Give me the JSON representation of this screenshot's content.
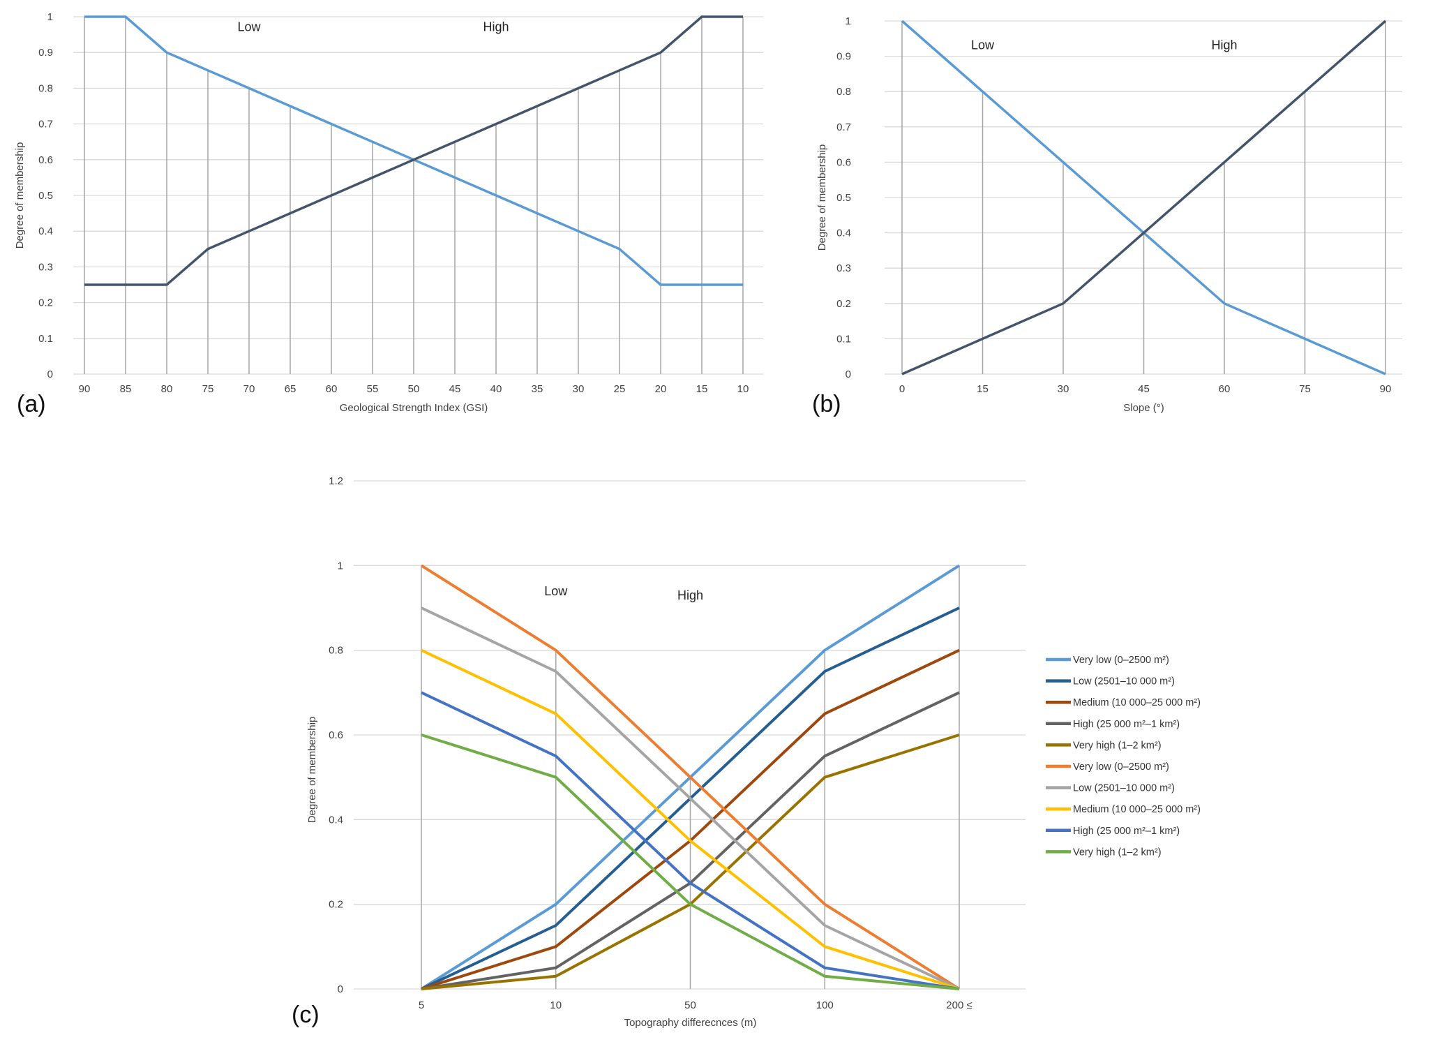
{
  "chart_data": [
    {
      "type": "line",
      "panel_label": "(a)",
      "xlabel": "Geological Strength Index (GSI)",
      "ylabel": "Degree of membership",
      "categories": [
        "90",
        "85",
        "80",
        "75",
        "70",
        "65",
        "60",
        "55",
        "50",
        "45",
        "40",
        "35",
        "30",
        "25",
        "20",
        "15",
        "10"
      ],
      "yticks": [
        "0",
        "0.1",
        "0.2",
        "0.3",
        "0.4",
        "0.5",
        "0.6",
        "0.7",
        "0.8",
        "0.9",
        "1"
      ],
      "ylim": [
        0,
        1
      ],
      "grid": true,
      "annotations": [
        {
          "text": "Low",
          "x": "70",
          "y": 0.96
        },
        {
          "text": "High",
          "x": "40",
          "y": 0.96
        }
      ],
      "series": [
        {
          "color": "#5B9BD5",
          "values": [
            1,
            1,
            0.9,
            0.85,
            0.8,
            0.75,
            0.7,
            0.65,
            0.6,
            0.55,
            0.5,
            0.45,
            0.4,
            0.35,
            0.25,
            0.25,
            0.25
          ]
        },
        {
          "color": "#44546A",
          "values": [
            0.25,
            0.25,
            0.25,
            0.35,
            0.4,
            0.45,
            0.5,
            0.55,
            0.6,
            0.65,
            0.7,
            0.75,
            0.8,
            0.85,
            0.9,
            1,
            1
          ]
        }
      ]
    },
    {
      "type": "line",
      "panel_label": "(b)",
      "xlabel": "Slope (°)",
      "ylabel": "Degree of membership",
      "categories": [
        "0",
        "15",
        "30",
        "45",
        "60",
        "75",
        "90"
      ],
      "yticks": [
        "0",
        "0.1",
        "0.2",
        "0.3",
        "0.4",
        "0.5",
        "0.6",
        "0.7",
        "0.8",
        "0.9",
        "1"
      ],
      "ylim": [
        0,
        1
      ],
      "grid": true,
      "annotations": [
        {
          "text": "Low",
          "x": "15",
          "y": 0.92
        },
        {
          "text": "High",
          "x": "60",
          "y": 0.92
        }
      ],
      "series": [
        {
          "color": "#5B9BD5",
          "values": [
            1,
            0.8,
            0.6,
            0.4,
            0.2,
            0.1,
            0
          ]
        },
        {
          "color": "#44546A",
          "values": [
            0,
            0.1,
            0.2,
            0.4,
            0.6,
            0.8,
            1
          ]
        }
      ]
    },
    {
      "type": "line",
      "panel_label": "(c)",
      "xlabel": "Topography differecnces (m)",
      "ylabel": "Degree of membership",
      "categories": [
        "5",
        "10",
        "50",
        "100",
        "200 ≤"
      ],
      "yticks": [
        "0",
        "0.2",
        "0.4",
        "0.6",
        "0.8",
        "1",
        "1.2"
      ],
      "ylim": [
        0,
        1.2
      ],
      "grid": true,
      "legend": "right",
      "annotations": [
        {
          "text": "Low",
          "x": "10",
          "y": 0.93
        },
        {
          "text": "High",
          "x": "50",
          "y": 0.92
        }
      ],
      "series": [
        {
          "name": "Very low (0–2500 m²)",
          "color": "#5B9BD5",
          "values": [
            0,
            0.2,
            0.5,
            0.8,
            1
          ]
        },
        {
          "name": "Low (2501–10 000 m²)",
          "color": "#255E91",
          "values": [
            0,
            0.15,
            0.45,
            0.75,
            0.9
          ]
        },
        {
          "name": "Medium (10 000–25 000 m²)",
          "color": "#9E480E",
          "values": [
            0,
            0.1,
            0.35,
            0.65,
            0.8
          ]
        },
        {
          "name": "High (25 000 m²–1 km²)",
          "color": "#636363",
          "values": [
            0,
            0.05,
            0.25,
            0.55,
            0.7
          ]
        },
        {
          "name": "Very high (1–2 km²)",
          "color": "#997300",
          "values": [
            0,
            0.03,
            0.2,
            0.5,
            0.6
          ]
        },
        {
          "name": "Very low (0–2500 m²)",
          "color": "#ED7D31",
          "values": [
            1,
            0.8,
            0.5,
            0.2,
            0
          ]
        },
        {
          "name": "Low (2501–10 000 m²)",
          "color": "#A5A5A5",
          "values": [
            0.9,
            0.75,
            0.45,
            0.15,
            0
          ]
        },
        {
          "name": "Medium (10 000–25 000 m²)",
          "color": "#FFC000",
          "values": [
            0.8,
            0.65,
            0.35,
            0.1,
            0
          ]
        },
        {
          "name": "High (25 000 m²–1 km²)",
          "color": "#4472C4",
          "values": [
            0.7,
            0.55,
            0.25,
            0.05,
            0
          ]
        },
        {
          "name": "Very high (1–2 km²)",
          "color": "#70AD47",
          "values": [
            0.6,
            0.5,
            0.2,
            0.03,
            0
          ]
        }
      ]
    }
  ]
}
